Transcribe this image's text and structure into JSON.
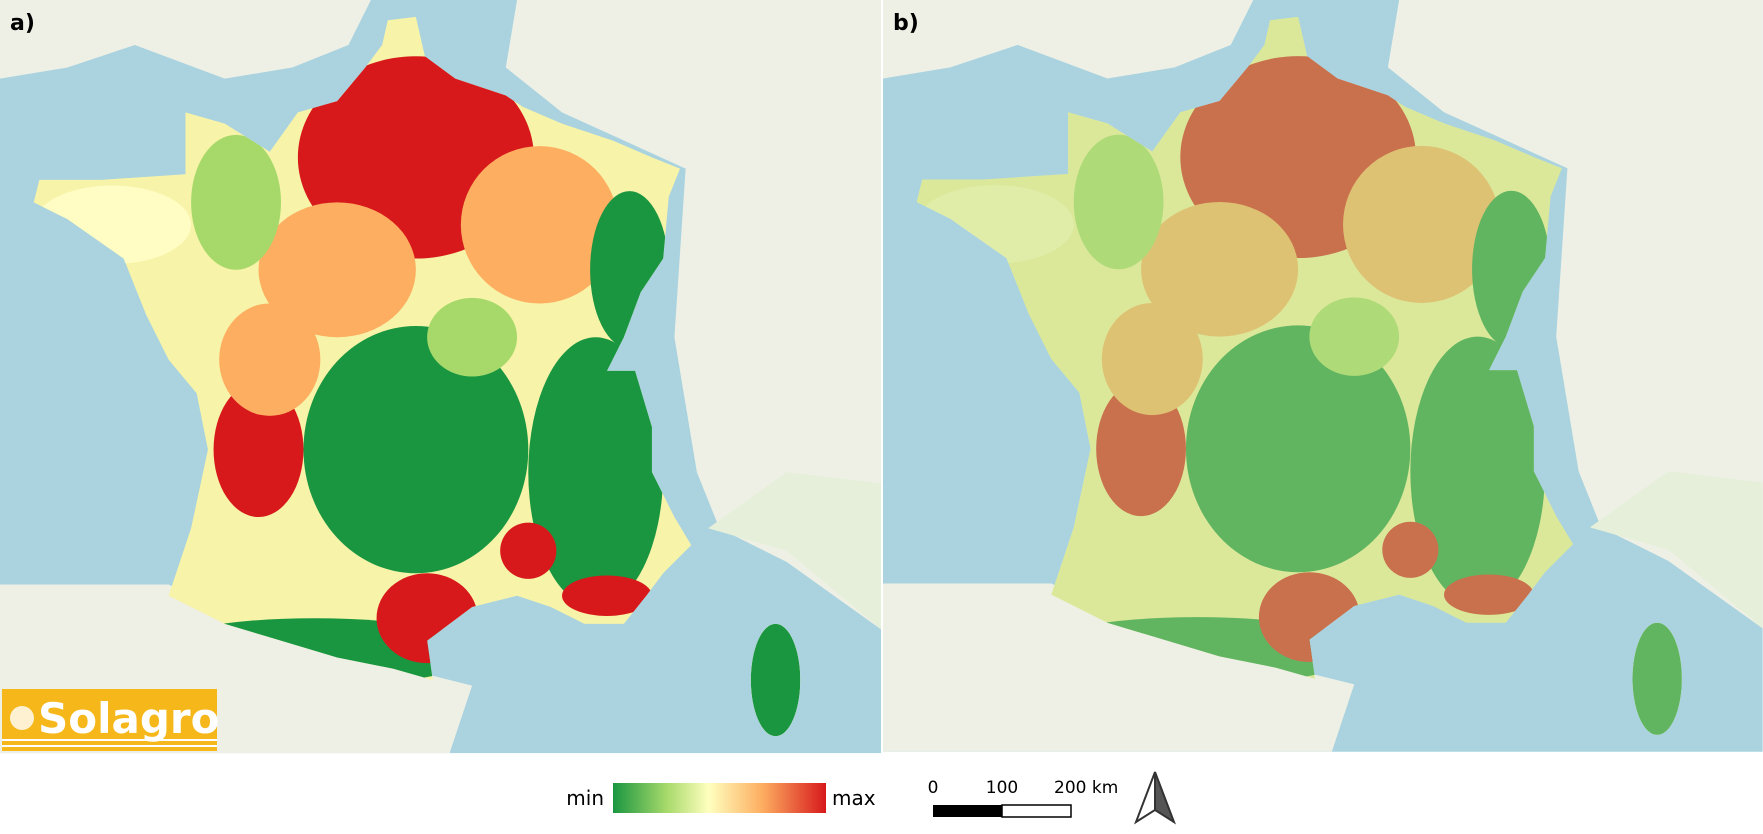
{
  "panels": [
    {
      "label": "a)"
    },
    {
      "label": "b)"
    }
  ],
  "logo": {
    "text": "Solagro"
  },
  "legend": {
    "min": "min",
    "max": "max"
  },
  "scale_bar": {
    "ticks": [
      "0",
      "100",
      "200 km"
    ]
  }
}
